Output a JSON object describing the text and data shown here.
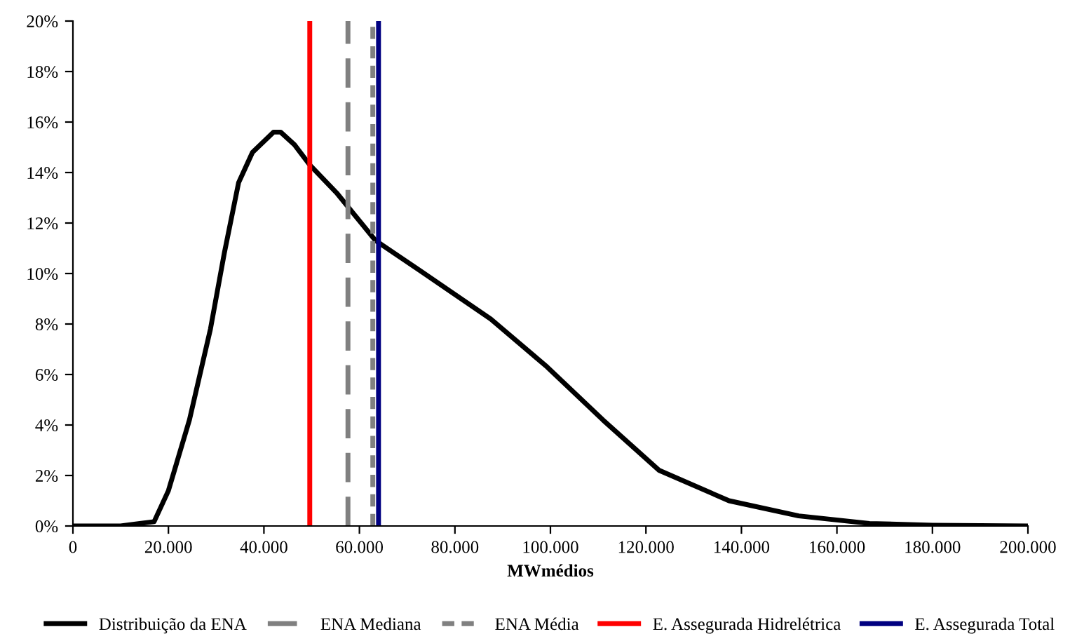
{
  "chart_data": {
    "type": "line",
    "xlabel": "MWmédios",
    "x": [
      0,
      10000,
      14000,
      17000,
      20000,
      24400,
      28800,
      31700,
      34700,
      37600,
      42000,
      43500,
      46400,
      49600,
      55200,
      63400,
      72800,
      87500,
      99300,
      111000,
      122800,
      137400,
      152000,
      166800,
      180000,
      200000
    ],
    "series": [
      {
        "name": "Distribuição da ENA",
        "color": "#000000",
        "values": [
          0,
          0,
          0.1,
          0.17,
          1.4,
          4.2,
          7.8,
          10.8,
          13.6,
          14.8,
          15.6,
          15.6,
          15.1,
          14.3,
          13.2,
          11.3,
          10.1,
          8.2,
          6.3,
          4.2,
          2.2,
          1.0,
          0.4,
          0.1,
          0.03,
          0
        ]
      }
    ],
    "ref_lines": [
      {
        "axis": "x",
        "value": 57600,
        "label": "ENA Mediana",
        "color": "#808080",
        "line_style": "dashed"
      },
      {
        "axis": "x",
        "value": 62800,
        "label": "ENA Média",
        "color": "#808080",
        "line_style": "dotted"
      },
      {
        "axis": "x",
        "value": 49600,
        "label": "E. Assegurada Hidrelétrica",
        "color": "#ff0000",
        "line_style": "solid"
      },
      {
        "axis": "x",
        "value": 64000,
        "label": "E. Assegurada Total",
        "color": "#000080",
        "line_style": "solid"
      }
    ],
    "xlim": [
      0,
      200000
    ],
    "xticks": [
      0,
      {
        "value": 20000,
        "label": "20.000"
      },
      {
        "value": 40000,
        "label": "40.000"
      },
      {
        "value": 60000,
        "label": "60.000"
      },
      {
        "value": 80000,
        "label": "80.000"
      },
      {
        "value": 100000,
        "label": "100.000"
      },
      {
        "value": 120000,
        "label": "120.000"
      },
      {
        "value": 140000,
        "label": "140.000"
      },
      {
        "value": 160000,
        "label": "160.000"
      },
      {
        "value": 180000,
        "label": "180.000"
      },
      {
        "value": 200000,
        "label": "200.000"
      }
    ],
    "ylim": [
      0,
      20
    ],
    "yticks": [
      {
        "value": 0,
        "label": "0%"
      },
      {
        "value": 2,
        "label": "2%"
      },
      {
        "value": 4,
        "label": "4%"
      },
      {
        "value": 6,
        "label": "6%"
      },
      {
        "value": 8,
        "label": "8%"
      },
      {
        "value": 10,
        "label": "10%"
      },
      {
        "value": 12,
        "label": "12%"
      },
      {
        "value": 14,
        "label": "14%"
      },
      {
        "value": 16,
        "label": "16%"
      },
      {
        "value": 18,
        "label": "18%"
      },
      {
        "value": 20,
        "label": "20%"
      }
    ],
    "grid": false,
    "legend": "bottom",
    "marker": "none",
    "line_style": "solid"
  }
}
